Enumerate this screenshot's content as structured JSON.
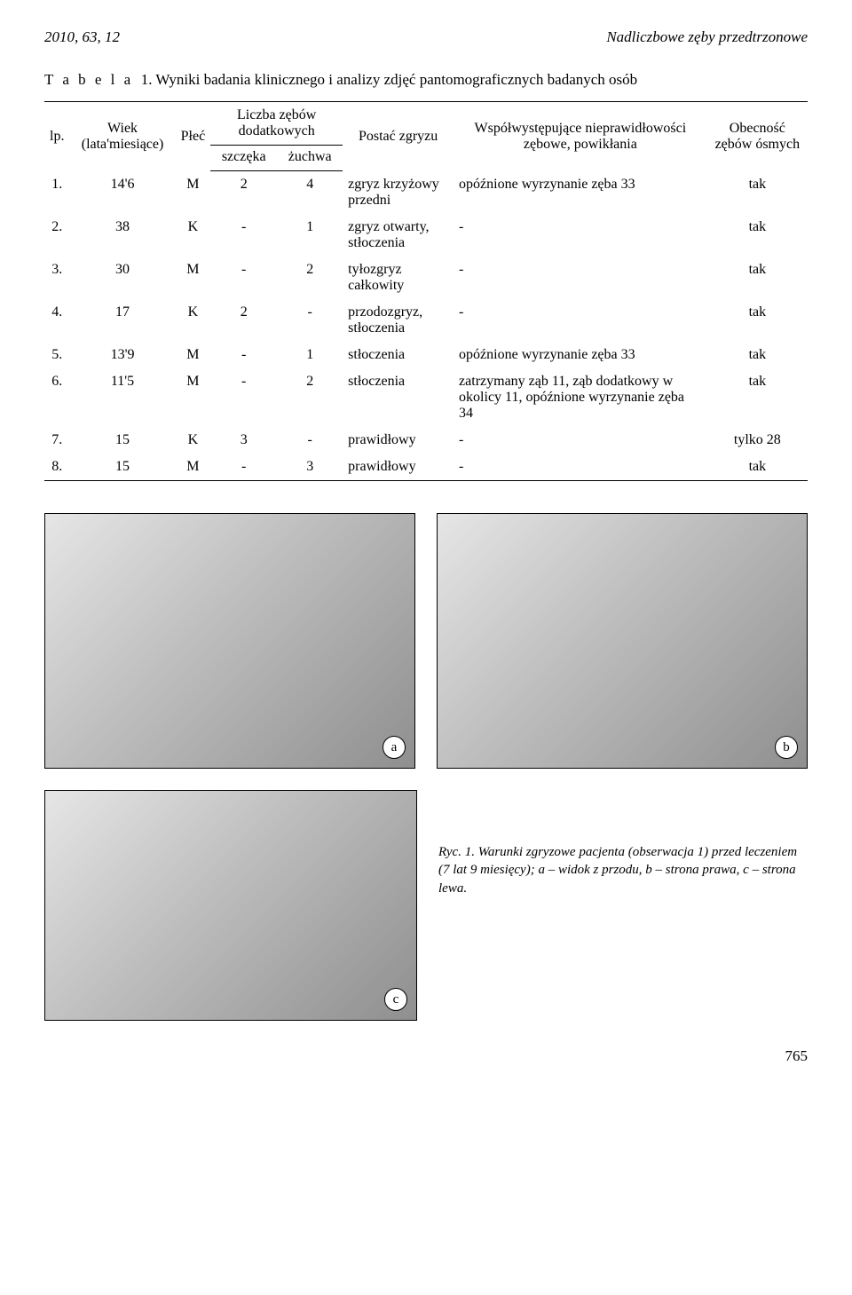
{
  "header": {
    "left": "2010, 63, 12",
    "right": "Nadliczbowe zęby przedtrzonowe"
  },
  "table": {
    "caption_label": "T a b e l a",
    "caption_num": "1.",
    "caption_text": "Wyniki badania klinicznego i analizy zdjęć pantomograficznych badanych osób",
    "head": {
      "lp": "lp.",
      "wiek": "Wiek (lata'miesiące)",
      "plec": "Płeć",
      "liczba": "Liczba zębów dodatkowych",
      "szczeka": "szczęka",
      "zuchwa": "żuchwa",
      "postac": "Postać zgryzu",
      "wspol": "Współwystępujące nieprawidłowości zębowe, powikłania",
      "obecnosc": "Obecność zębów ósmych"
    },
    "rows": [
      {
        "lp": "1.",
        "wiek": "14'6",
        "plec": "M",
        "sz": "2",
        "zu": "4",
        "postac": "zgryz krzyżowy przedni",
        "wspol": "opóźnione wyrzynanie zęba 33",
        "obec": "tak"
      },
      {
        "lp": "2.",
        "wiek": "38",
        "plec": "K",
        "sz": "-",
        "zu": "1",
        "postac": "zgryz otwarty, stłoczenia",
        "wspol": "-",
        "obec": "tak"
      },
      {
        "lp": "3.",
        "wiek": "30",
        "plec": "M",
        "sz": "-",
        "zu": "2",
        "postac": "tyłozgryz całkowity",
        "wspol": "-",
        "obec": "tak"
      },
      {
        "lp": "4.",
        "wiek": "17",
        "plec": "K",
        "sz": "2",
        "zu": "-",
        "postac": "przodozgryz, stłoczenia",
        "wspol": "-",
        "obec": "tak"
      },
      {
        "lp": "5.",
        "wiek": "13'9",
        "plec": "M",
        "sz": "-",
        "zu": "1",
        "postac": "stłoczenia",
        "wspol": "opóźnione wyrzynanie zęba 33",
        "obec": "tak"
      },
      {
        "lp": "6.",
        "wiek": "11'5",
        "plec": "M",
        "sz": "-",
        "zu": "2",
        "postac": "stłoczenia",
        "wspol": "zatrzymany ząb 11, ząb dodatkowy w okolicy 11, opóźnione wyrzynanie zęba 34",
        "obec": "tak"
      },
      {
        "lp": "7.",
        "wiek": "15",
        "plec": "K",
        "sz": "3",
        "zu": "-",
        "postac": "prawidłowy",
        "wspol": "-",
        "obec": "tylko 28"
      },
      {
        "lp": "8.",
        "wiek": "15",
        "plec": "M",
        "sz": "-",
        "zu": "3",
        "postac": "prawidłowy",
        "wspol": "-",
        "obec": "tak"
      }
    ]
  },
  "figures": {
    "a": "a",
    "b": "b",
    "c": "c",
    "caption": "Ryc. 1. Warunki zgryzowe pacjenta (obserwacja 1) przed leczeniem (7 lat 9 miesięcy); a – widok z przodu, b – strona prawa, c – strona lewa."
  },
  "page_number": "765"
}
